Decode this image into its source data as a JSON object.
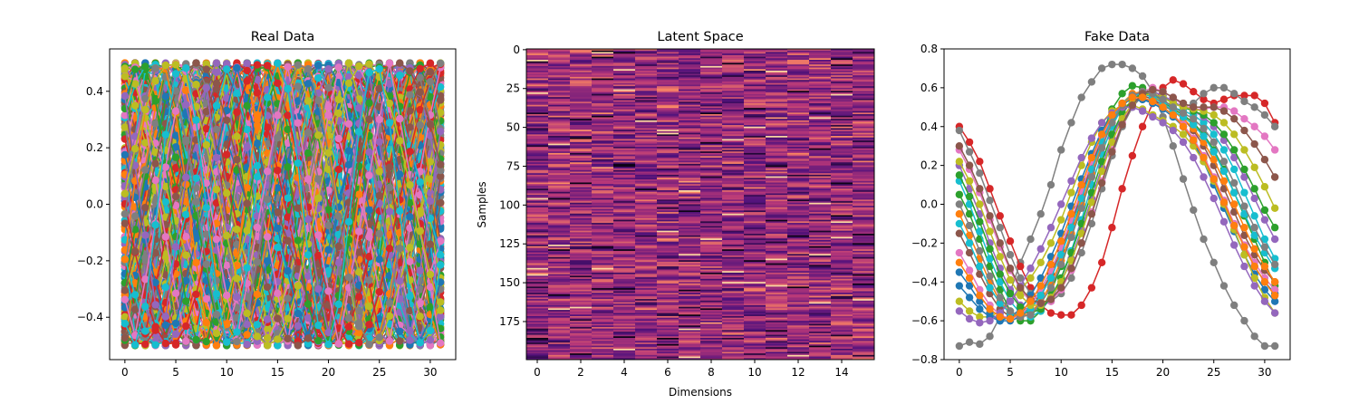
{
  "chart_data": [
    {
      "type": "line",
      "title": "Real Data",
      "xlabel": "",
      "ylabel": "",
      "xlim": [
        -1.5,
        32.5
      ],
      "ylim": [
        -0.55,
        0.55
      ],
      "xticks": [
        "0",
        "5",
        "10",
        "15",
        "20",
        "25",
        "30"
      ],
      "yticks": [
        "−0.4",
        "−0.2",
        "0.0",
        "0.2",
        "0.4"
      ],
      "marker": "circle",
      "num_series": 200,
      "points_per_series": 32,
      "waveform": "triangle/sine waves, amplitude 0.5, random phase",
      "series_summary": {
        "x_range": [
          0,
          31
        ],
        "y_range": [
          -0.5,
          0.5
        ]
      }
    },
    {
      "type": "heatmap",
      "title": "Latent Space",
      "xlabel": "Dimensions",
      "ylabel": "Samples",
      "rows": 200,
      "cols": 16,
      "colormap": "magma",
      "value_range": [
        0,
        1
      ],
      "xticks": [
        "0",
        "2",
        "4",
        "6",
        "8",
        "10",
        "12",
        "14"
      ],
      "yticks": [
        "0",
        "25",
        "50",
        "75",
        "100",
        "125",
        "150",
        "175"
      ]
    },
    {
      "type": "line",
      "title": "Fake Data",
      "xlabel": "",
      "ylabel": "",
      "xlim": [
        -1.5,
        32.5
      ],
      "ylim": [
        -0.8,
        0.8
      ],
      "xticks": [
        "0",
        "5",
        "10",
        "15",
        "20",
        "25",
        "30"
      ],
      "yticks": [
        "0.8",
        "0.6",
        "0.4",
        "0.2",
        "0.0",
        "−0.2",
        "−0.4",
        "−0.6",
        "−0.8"
      ],
      "marker": "circle",
      "x": [
        0,
        1,
        2,
        3,
        4,
        5,
        6,
        7,
        8,
        9,
        10,
        11,
        12,
        13,
        14,
        15,
        16,
        17,
        18,
        19,
        20,
        21,
        22,
        23,
        24,
        25,
        26,
        27,
        28,
        29,
        30,
        31
      ],
      "series": [
        {
          "color": "#7f7f7f",
          "values": [
            -0.73,
            -0.71,
            -0.72,
            -0.68,
            -0.58,
            -0.45,
            -0.3,
            -0.18,
            -0.05,
            0.1,
            0.28,
            0.42,
            0.55,
            0.63,
            0.7,
            0.72,
            0.72,
            0.7,
            0.66,
            0.58,
            0.45,
            0.3,
            0.13,
            -0.03,
            -0.18,
            -0.3,
            -0.42,
            -0.52,
            -0.6,
            -0.68,
            -0.73,
            -0.73
          ]
        },
        {
          "color": "#d62728",
          "values": [
            0.4,
            0.32,
            0.22,
            0.08,
            -0.06,
            -0.19,
            -0.32,
            -0.43,
            -0.52,
            -0.56,
            -0.57,
            -0.57,
            -0.52,
            -0.43,
            -0.3,
            -0.12,
            0.08,
            0.25,
            0.4,
            0.52,
            0.6,
            0.64,
            0.62,
            0.58,
            0.54,
            0.52,
            0.54,
            0.56,
            0.56,
            0.56,
            0.52,
            0.42
          ]
        },
        {
          "color": "#7f7f7f",
          "values": [
            0.38,
            0.27,
            0.16,
            0.02,
            -0.12,
            -0.26,
            -0.38,
            -0.46,
            -0.5,
            -0.5,
            -0.46,
            -0.38,
            -0.25,
            -0.1,
            0.08,
            0.25,
            0.4,
            0.5,
            0.56,
            0.58,
            0.56,
            0.52,
            0.5,
            0.52,
            0.57,
            0.6,
            0.6,
            0.57,
            0.53,
            0.5,
            0.46,
            0.4
          ]
        },
        {
          "color": "#2ca02c",
          "values": [
            0.05,
            -0.05,
            -0.18,
            -0.32,
            -0.44,
            -0.55,
            -0.6,
            -0.6,
            -0.55,
            -0.45,
            -0.32,
            -0.16,
            0.02,
            0.2,
            0.36,
            0.49,
            0.57,
            0.61,
            0.6,
            0.57,
            0.53,
            0.49,
            0.46,
            0.42,
            0.36,
            0.28,
            0.18,
            0.06,
            -0.06,
            -0.18,
            -0.3,
            -0.42
          ]
        },
        {
          "color": "#1f77b4",
          "values": [
            -0.35,
            -0.42,
            -0.5,
            -0.56,
            -0.6,
            -0.6,
            -0.58,
            -0.52,
            -0.44,
            -0.34,
            -0.22,
            -0.08,
            0.06,
            0.2,
            0.32,
            0.42,
            0.49,
            0.53,
            0.54,
            0.53,
            0.5,
            0.46,
            0.4,
            0.32,
            0.22,
            0.1,
            -0.02,
            -0.14,
            -0.26,
            -0.36,
            -0.44,
            -0.5
          ]
        },
        {
          "color": "#e377c2",
          "values": [
            0.28,
            0.18,
            0.06,
            -0.08,
            -0.22,
            -0.34,
            -0.44,
            -0.5,
            -0.52,
            -0.5,
            -0.44,
            -0.34,
            -0.2,
            -0.04,
            0.12,
            0.28,
            0.42,
            0.52,
            0.58,
            0.6,
            0.58,
            0.55,
            0.51,
            0.49,
            0.49,
            0.5,
            0.5,
            0.48,
            0.44,
            0.4,
            0.35,
            0.28
          ]
        },
        {
          "color": "#bcbd22",
          "values": [
            -0.5,
            -0.55,
            -0.58,
            -0.58,
            -0.55,
            -0.5,
            -0.44,
            -0.38,
            -0.3,
            -0.2,
            -0.08,
            0.06,
            0.2,
            0.32,
            0.42,
            0.48,
            0.51,
            0.51,
            0.49,
            0.46,
            0.43,
            0.4,
            0.36,
            0.3,
            0.22,
            0.12,
            0.0,
            -0.13,
            -0.26,
            -0.38,
            -0.48,
            -0.56
          ]
        },
        {
          "color": "#17becf",
          "values": [
            0.12,
            0.0,
            -0.14,
            -0.28,
            -0.4,
            -0.5,
            -0.56,
            -0.58,
            -0.55,
            -0.48,
            -0.38,
            -0.24,
            -0.08,
            0.1,
            0.26,
            0.4,
            0.5,
            0.56,
            0.58,
            0.56,
            0.53,
            0.5,
            0.48,
            0.46,
            0.42,
            0.36,
            0.28,
            0.18,
            0.06,
            -0.06,
            -0.18,
            -0.28
          ]
        },
        {
          "color": "#8c564b",
          "values": [
            -0.15,
            -0.25,
            -0.36,
            -0.46,
            -0.54,
            -0.58,
            -0.58,
            -0.54,
            -0.46,
            -0.36,
            -0.24,
            -0.1,
            0.05,
            0.2,
            0.33,
            0.44,
            0.51,
            0.55,
            0.56,
            0.54,
            0.51,
            0.48,
            0.44,
            0.38,
            0.3,
            0.2,
            0.08,
            -0.04,
            -0.16,
            -0.26,
            -0.34,
            -0.4
          ]
        },
        {
          "color": "#9467bd",
          "values": [
            0.2,
            0.08,
            -0.05,
            -0.2,
            -0.33,
            -0.44,
            -0.52,
            -0.55,
            -0.54,
            -0.49,
            -0.4,
            -0.28,
            -0.13,
            0.03,
            0.19,
            0.34,
            0.46,
            0.54,
            0.58,
            0.58,
            0.56,
            0.53,
            0.5,
            0.48,
            0.45,
            0.4,
            0.33,
            0.24,
            0.14,
            0.03,
            -0.08,
            -0.18
          ]
        },
        {
          "color": "#ff7f0e",
          "values": [
            -0.05,
            -0.16,
            -0.28,
            -0.4,
            -0.5,
            -0.56,
            -0.58,
            -0.56,
            -0.5,
            -0.41,
            -0.29,
            -0.15,
            0.0,
            0.16,
            0.31,
            0.43,
            0.52,
            0.57,
            0.58,
            0.56,
            0.52,
            0.48,
            0.44,
            0.39,
            0.32,
            0.23,
            0.12,
            0.0,
            -0.12,
            -0.23,
            -0.32,
            -0.4
          ]
        },
        {
          "color": "#1f77b4",
          "values": [
            -0.42,
            -0.48,
            -0.54,
            -0.58,
            -0.6,
            -0.58,
            -0.54,
            -0.47,
            -0.38,
            -0.27,
            -0.15,
            -0.01,
            0.13,
            0.26,
            0.38,
            0.46,
            0.52,
            0.54,
            0.54,
            0.52,
            0.49,
            0.45,
            0.4,
            0.33,
            0.24,
            0.13,
            0.01,
            -0.11,
            -0.22,
            -0.32,
            -0.4,
            -0.46
          ]
        },
        {
          "color": "#2ca02c",
          "values": [
            0.15,
            0.04,
            -0.09,
            -0.23,
            -0.36,
            -0.46,
            -0.53,
            -0.56,
            -0.54,
            -0.48,
            -0.38,
            -0.25,
            -0.1,
            0.06,
            0.22,
            0.36,
            0.47,
            0.54,
            0.57,
            0.57,
            0.55,
            0.52,
            0.5,
            0.48,
            0.46,
            0.42,
            0.36,
            0.28,
            0.18,
            0.08,
            -0.03,
            -0.12
          ]
        },
        {
          "color": "#e377c2",
          "values": [
            -0.25,
            -0.34,
            -0.44,
            -0.52,
            -0.57,
            -0.59,
            -0.57,
            -0.52,
            -0.44,
            -0.34,
            -0.22,
            -0.08,
            0.07,
            0.22,
            0.35,
            0.45,
            0.52,
            0.55,
            0.55,
            0.53,
            0.5,
            0.46,
            0.41,
            0.34,
            0.25,
            0.14,
            0.02,
            -0.1,
            -0.21,
            -0.3,
            -0.38,
            -0.44
          ]
        },
        {
          "color": "#17becf",
          "values": [
            -0.1,
            -0.2,
            -0.32,
            -0.43,
            -0.51,
            -0.56,
            -0.57,
            -0.54,
            -0.47,
            -0.38,
            -0.26,
            -0.12,
            0.03,
            0.18,
            0.32,
            0.44,
            0.52,
            0.56,
            0.57,
            0.55,
            0.52,
            0.48,
            0.45,
            0.41,
            0.35,
            0.27,
            0.17,
            0.06,
            -0.05,
            -0.16,
            -0.25,
            -0.33
          ]
        },
        {
          "color": "#bcbd22",
          "values": [
            0.22,
            0.12,
            0.0,
            -0.14,
            -0.27,
            -0.39,
            -0.47,
            -0.52,
            -0.52,
            -0.48,
            -0.4,
            -0.29,
            -0.15,
            0.01,
            0.17,
            0.32,
            0.44,
            0.52,
            0.56,
            0.57,
            0.55,
            0.52,
            0.5,
            0.49,
            0.48,
            0.46,
            0.42,
            0.36,
            0.28,
            0.19,
            0.09,
            -0.02
          ]
        },
        {
          "color": "#9467bd",
          "values": [
            -0.55,
            -0.59,
            -0.61,
            -0.6,
            -0.56,
            -0.5,
            -0.42,
            -0.33,
            -0.23,
            -0.12,
            0.0,
            0.12,
            0.24,
            0.34,
            0.42,
            0.47,
            0.5,
            0.5,
            0.48,
            0.45,
            0.42,
            0.38,
            0.32,
            0.24,
            0.14,
            0.03,
            -0.09,
            -0.21,
            -0.32,
            -0.42,
            -0.5,
            -0.56
          ]
        },
        {
          "color": "#7f7f7f",
          "values": [
            0.0,
            -0.11,
            -0.24,
            -0.37,
            -0.48,
            -0.55,
            -0.58,
            -0.57,
            -0.51,
            -0.43,
            -0.31,
            -0.17,
            -0.02,
            0.14,
            0.29,
            0.42,
            0.51,
            0.56,
            0.58,
            0.57,
            0.54,
            0.5,
            0.47,
            0.44,
            0.39,
            0.32,
            0.22,
            0.11,
            -0.01,
            -0.12,
            -0.22,
            -0.31
          ]
        },
        {
          "color": "#8c564b",
          "values": [
            0.3,
            0.2,
            0.08,
            -0.06,
            -0.2,
            -0.33,
            -0.43,
            -0.49,
            -0.51,
            -0.49,
            -0.43,
            -0.33,
            -0.2,
            -0.05,
            0.11,
            0.27,
            0.41,
            0.51,
            0.57,
            0.59,
            0.58,
            0.55,
            0.52,
            0.5,
            0.5,
            0.5,
            0.48,
            0.44,
            0.38,
            0.31,
            0.23,
            0.14
          ]
        },
        {
          "color": "#ff7f0e",
          "values": [
            -0.3,
            -0.38,
            -0.47,
            -0.54,
            -0.58,
            -0.59,
            -0.56,
            -0.5,
            -0.42,
            -0.31,
            -0.19,
            -0.05,
            0.1,
            0.24,
            0.36,
            0.46,
            0.52,
            0.55,
            0.55,
            0.53,
            0.5,
            0.46,
            0.4,
            0.33,
            0.24,
            0.13,
            0.01,
            -0.11,
            -0.22,
            -0.32,
            -0.4,
            -0.47
          ]
        }
      ]
    }
  ]
}
